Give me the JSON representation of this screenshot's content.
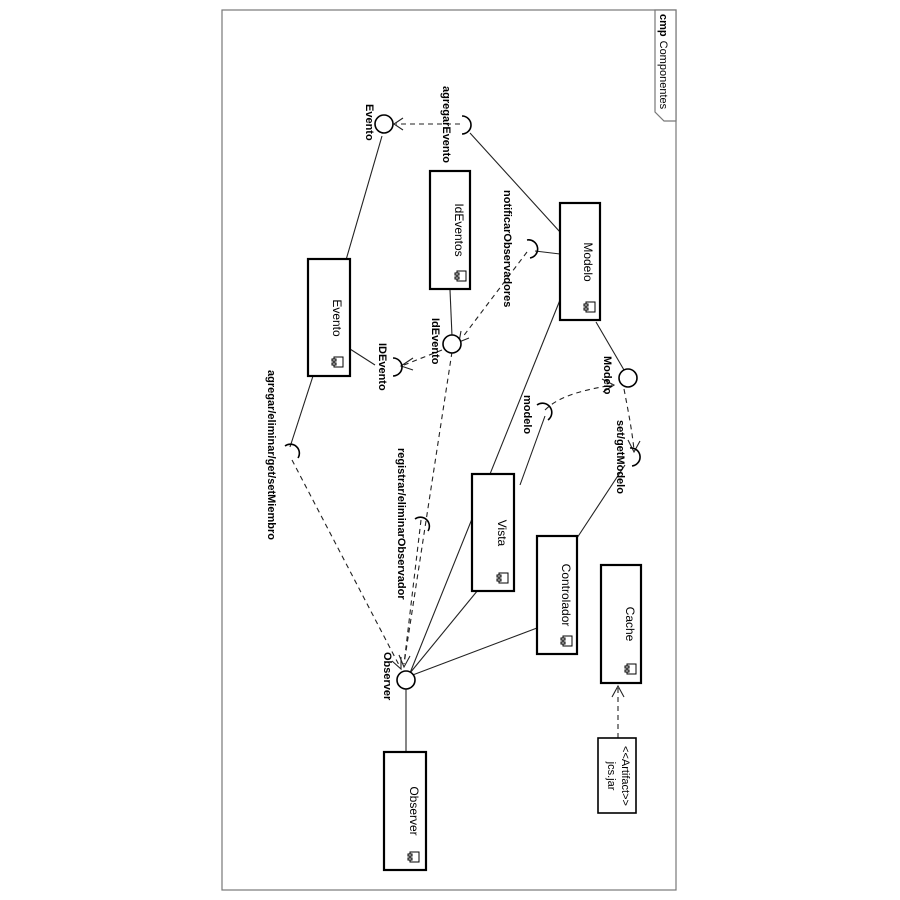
{
  "frame": {
    "keyword": "cmp",
    "title": "Componentes"
  },
  "components": {
    "modelo": "Modelo",
    "ideventos": "IdEventos",
    "evento": "Evento",
    "vista": "Vista",
    "controlador": "Controlador",
    "cache": "Cache",
    "observer": "Observer"
  },
  "artifact": {
    "stereotype": "<<Artifact>>",
    "name": "jcs.jar"
  },
  "interfaces": {
    "agregar_evento": "agregarEvento",
    "evento": "Evento",
    "notificar_observadores": "notificarObservadores",
    "id_evento_provided": "IdEvento",
    "id_evento_required": "IDEvento",
    "modelo_provided": "Modelo",
    "modelo_required": "modelo",
    "set_get_modelo": "set/getModelo",
    "registrar_eliminar_observador": "registrar/eliminarObservador",
    "agregar_eliminar_miembro": "agregar/eliminar/get/setMiembro",
    "observer": "Observer"
  }
}
